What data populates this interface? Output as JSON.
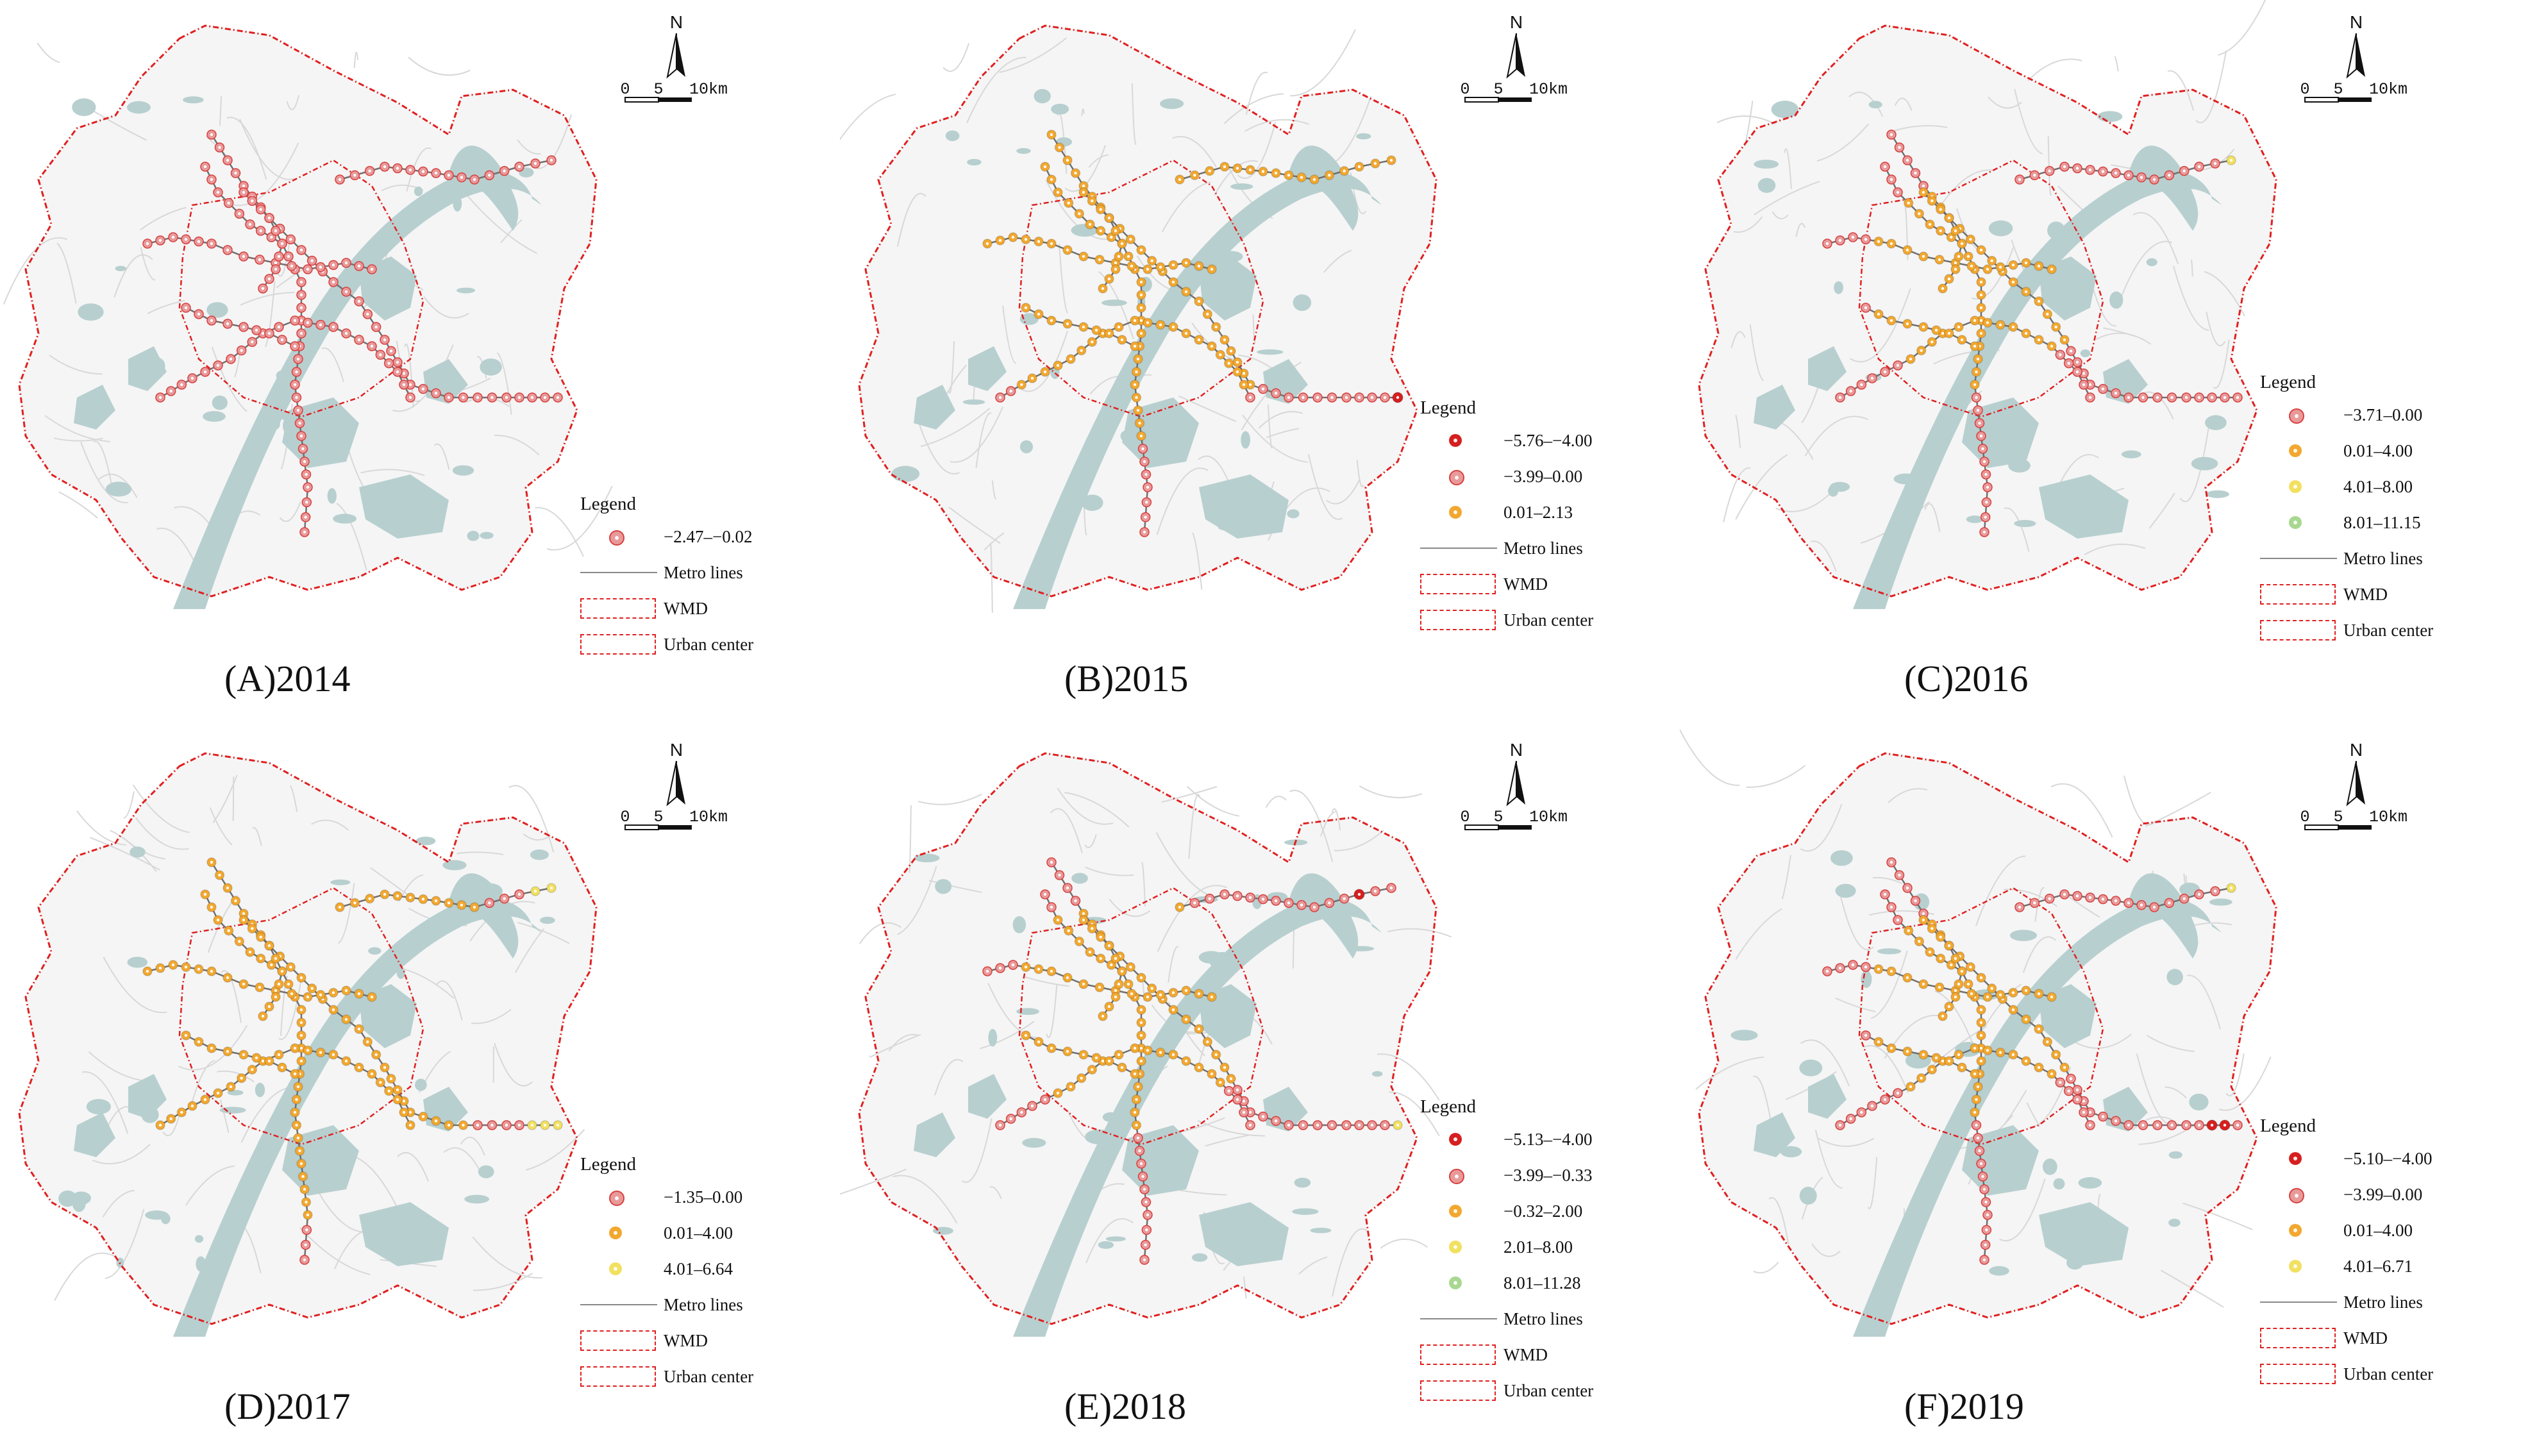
{
  "legend_common": {
    "title": "Legend",
    "metro_label": "Metro lines",
    "wmd_label": "WMD",
    "center_label": "Urban center"
  },
  "north": {
    "label": "N",
    "scale_labels": [
      "0",
      "5",
      "10km"
    ]
  },
  "colors": {
    "land": "#f5f5f5",
    "water": "#b8cfcf",
    "roads": "#d8d8d8",
    "boundary": "#e02020",
    "metro": "#707070",
    "dark_red": "#d61f1f",
    "pink": "#e89a9a",
    "orange": "#f2a830",
    "yellow": "#f2e060",
    "green": "#a8d890"
  },
  "panels": [
    {
      "caption": "(A)2014",
      "classes": [
        {
          "label": "−2.47–−0.02",
          "color": "#e89a9a"
        }
      ]
    },
    {
      "caption": "(B)2015",
      "classes": [
        {
          "label": "−5.76–−4.00",
          "color": "#d61f1f"
        },
        {
          "label": "−3.99–0.00",
          "color": "#e89a9a"
        },
        {
          "label": "0.01–2.13",
          "color": "#f2a830"
        }
      ]
    },
    {
      "caption": "(C)2016",
      "classes": [
        {
          "label": "−3.71–0.00",
          "color": "#e89a9a"
        },
        {
          "label": "0.01–4.00",
          "color": "#f2a830"
        },
        {
          "label": "4.01–8.00",
          "color": "#f2e060"
        },
        {
          "label": "8.01–11.15",
          "color": "#a8d890"
        }
      ]
    },
    {
      "caption": "(D)2017",
      "classes": [
        {
          "label": "−1.35–0.00",
          "color": "#e89a9a"
        },
        {
          "label": "0.01–4.00",
          "color": "#f2a830"
        },
        {
          "label": "4.01–6.64",
          "color": "#f2e060"
        }
      ]
    },
    {
      "caption": "(E)2018",
      "classes": [
        {
          "label": "−5.13–−4.00",
          "color": "#d61f1f"
        },
        {
          "label": "−3.99–−0.33",
          "color": "#e89a9a"
        },
        {
          "label": "−0.32–2.00",
          "color": "#f2a830"
        },
        {
          "label": "2.01–8.00",
          "color": "#f2e060"
        },
        {
          "label": "8.01–11.28",
          "color": "#a8d890"
        }
      ]
    },
    {
      "caption": "(F)2019",
      "classes": [
        {
          "label": "−5.10–−4.00",
          "color": "#d61f1f"
        },
        {
          "label": "−3.99–0.00",
          "color": "#e89a9a"
        },
        {
          "label": "0.01–4.00",
          "color": "#f2a830"
        },
        {
          "label": "4.01–6.71",
          "color": "#f2e060"
        }
      ]
    }
  ]
}
